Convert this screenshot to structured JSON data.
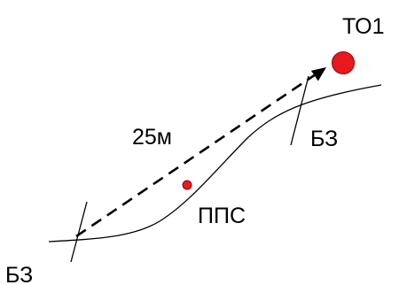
{
  "labels": {
    "target": "ТО1",
    "distance": "25м",
    "border_right": "БЗ",
    "border_left": "БЗ",
    "waypoint": "ППС"
  },
  "colors": {
    "marker_fill": "#e8191c",
    "marker_stroke": "#9b0000",
    "line": "#000000"
  }
}
